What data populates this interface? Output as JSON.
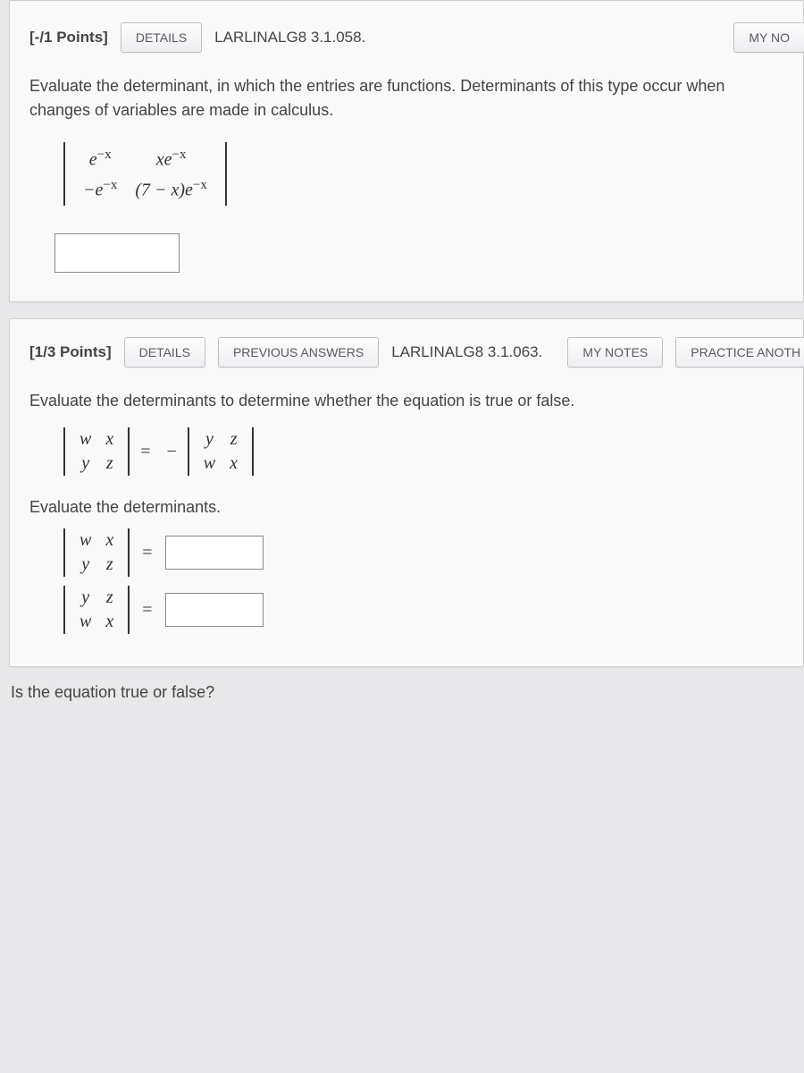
{
  "card1": {
    "points": "[-/1 Points]",
    "details_btn": "DETAILS",
    "ref": "LARLINALG8 3.1.058.",
    "mynotes_btn": "MY NO",
    "prompt": "Evaluate the determinant, in which the entries are functions. Determinants of this type occur when changes of variables are made in calculus.",
    "det": {
      "r1c1": "e<sup>−x</sup>",
      "r1c2": "xe<sup>−x</sup>",
      "r2c1": "−e<sup>−x</sup>",
      "r2c2": "(7 − x)e<sup>−x</sup>"
    }
  },
  "card2": {
    "points": "[1/3 Points]",
    "details_btn": "DETAILS",
    "prev_btn": "PREVIOUS ANSWERS",
    "ref": "LARLINALG8 3.1.063.",
    "mynotes_btn": "MY NOTES",
    "practice_btn": "PRACTICE ANOTH",
    "prompt": "Evaluate the determinants to determine whether the equation is true or false.",
    "eq": {
      "left": {
        "r1c1": "w",
        "r1c2": "x",
        "r2c1": "y",
        "r2c2": "z"
      },
      "neg": "−",
      "right": {
        "r1c1": "y",
        "r1c2": "z",
        "r2c1": "w",
        "r2c2": "x"
      }
    },
    "eval_label": "Evaluate the determinants.",
    "assign1": {
      "det": {
        "r1c1": "w",
        "r1c2": "x",
        "r2c1": "y",
        "r2c2": "z"
      }
    },
    "assign2": {
      "det": {
        "r1c1": "y",
        "r1c2": "z",
        "r2c1": "w",
        "r2c2": "x"
      }
    }
  },
  "footer_text": "Is the equation true or false?",
  "equals": "="
}
